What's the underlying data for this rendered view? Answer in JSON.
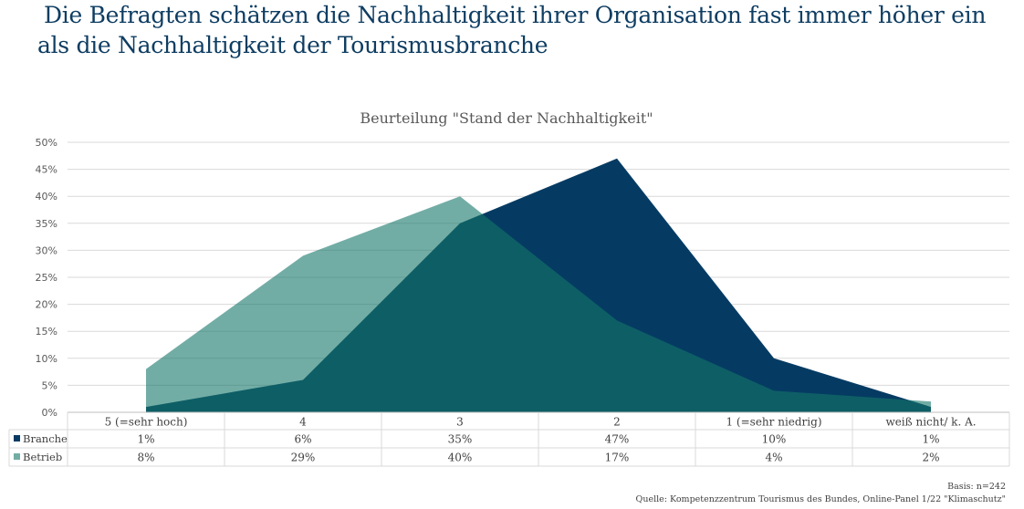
{
  "headline": {
    "line1": "Die Befragten schätzen die Nachhaltigkeit ihrer Organisation fast immer höher ein",
    "line2": "als die Nachhaltigkeit der Tourismusbranche"
  },
  "footnotes": {
    "basis": "Basis: n=242",
    "source": "Quelle: Kompetenzzentrum Tourismus des Bundes, Online-Panel 1/22 \"Klimaschutz\""
  },
  "colors": {
    "branche": "#053B63",
    "betrieb": "#147669",
    "betrieb_legend": "#72ADA5",
    "gridline": "#D9D9D9",
    "axis_text": "#595959",
    "table_text": "#404040",
    "headline": "#0E3D62"
  },
  "chart_data": {
    "type": "area",
    "title": "Beurteilung \"Stand der Nachhaltigkeit\"",
    "xlabel": "",
    "ylabel": "",
    "categories": [
      "5 (=sehr hoch)",
      "4",
      "3",
      "2",
      "1 (=sehr niedrig)",
      "weiß nicht/ k. A."
    ],
    "series": [
      {
        "name": "Branche",
        "values": [
          1,
          6,
          35,
          47,
          10,
          1
        ],
        "labels": [
          "1%",
          "6%",
          "35%",
          "47%",
          "10%",
          "1%"
        ]
      },
      {
        "name": "Betrieb",
        "values": [
          8,
          29,
          40,
          17,
          4,
          2
        ],
        "labels": [
          "8%",
          "29%",
          "40%",
          "17%",
          "4%",
          "2%"
        ]
      }
    ],
    "ylim": [
      0,
      50
    ],
    "yticks": [
      "0%",
      "5%",
      "10%",
      "15%",
      "20%",
      "25%",
      "30%",
      "35%",
      "40%",
      "45%",
      "50%"
    ],
    "ytick_values": [
      0,
      5,
      10,
      15,
      20,
      25,
      30,
      35,
      40,
      45,
      50
    ],
    "grid": true,
    "legend": "data-table"
  }
}
